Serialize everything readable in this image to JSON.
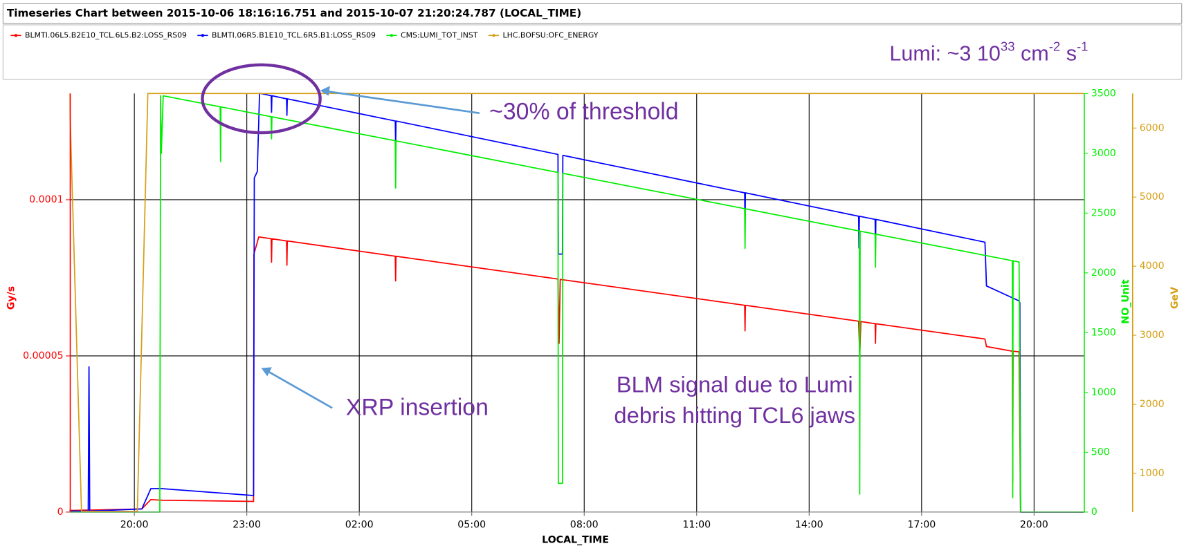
{
  "chart_data": {
    "type": "line",
    "title": "Timeseries Chart between 2015-10-06 18:16:16.751 and 2015-10-07 21:20:24.787 (LOCAL_TIME)",
    "xlabel": "LOCAL_TIME",
    "ylabel": "Gy/s",
    "y2label": "NO_Unit",
    "y3label": "GeV",
    "xlim": [
      18.27,
      45.34
    ],
    "xticks": [
      {
        "value": 20,
        "label": "20:00"
      },
      {
        "value": 23,
        "label": "23:00"
      },
      {
        "value": 26,
        "label": "02:00"
      },
      {
        "value": 29,
        "label": "05:00"
      },
      {
        "value": 32,
        "label": "08:00"
      },
      {
        "value": 35,
        "label": "11:00"
      },
      {
        "value": 38,
        "label": "14:00"
      },
      {
        "value": 41,
        "label": "17:00"
      },
      {
        "value": 44,
        "label": "20:00"
      }
    ],
    "ylim": [
      0,
      0.000134
    ],
    "yticks": [
      0,
      5e-05,
      0.0001
    ],
    "y2lim": [
      0,
      3500
    ],
    "y2ticks": [
      0,
      500,
      1000,
      1500,
      2000,
      2500,
      3000,
      3500
    ],
    "y3lim": [
      440,
      6500
    ],
    "y3ticks": [
      1000,
      2000,
      3000,
      4000,
      5000,
      6000
    ],
    "grid": true,
    "series": [
      {
        "name": "BLMTI.06L5.B2E10_TCL.6L5.B2:LOSS_RS09",
        "color": "#ff0000",
        "axis": "y",
        "x": [
          18.27,
          20.2,
          20.44,
          20.74,
          23.18,
          23.19,
          23.32,
          23.65,
          23.66,
          23.67,
          24.06,
          24.07,
          24.08,
          26.96,
          26.97,
          26.98,
          31.3,
          31.33,
          31.36,
          36.28,
          36.29,
          36.3,
          39.32,
          39.35,
          39.38,
          39.76,
          39.77,
          39.78,
          42.69,
          42.73,
          43.42,
          43.43,
          43.44,
          43.6,
          43.64,
          45.33
        ],
        "values": [
          5e-07,
          1e-06,
          4e-06,
          3.8e-06,
          3.4e-06,
          8.26e-05,
          8.81e-05,
          8.75e-05,
          8e-05,
          8.75e-05,
          8.68e-05,
          7.9e-05,
          8.68e-05,
          8.19e-05,
          7.4e-05,
          8.19e-05,
          7.46e-05,
          5.4e-05,
          7.45e-05,
          6.62e-05,
          5.8e-05,
          6.62e-05,
          6.11e-05,
          5e-05,
          6.1e-05,
          6.03e-05,
          5.4e-05,
          6.03e-05,
          5.54e-05,
          5.3e-05,
          5.15e-05,
          9.4e-06,
          5.15e-05,
          5.13e-05,
          0,
          0
        ]
      },
      {
        "name": "BLMTI.06R5.B1E10_TCL.6R5.B1:LOSS_RS09",
        "color": "#0000ff",
        "axis": "y",
        "x": [
          18.27,
          18.77,
          18.79,
          18.81,
          20.2,
          20.44,
          20.74,
          23.18,
          23.2,
          23.28,
          23.34,
          23.65,
          23.66,
          23.67,
          24.06,
          24.07,
          24.08,
          26.96,
          26.97,
          26.98,
          31.3,
          31.31,
          31.42,
          31.43,
          36.28,
          36.29,
          36.3,
          39.32,
          39.33,
          39.34,
          39.76,
          39.77,
          39.78,
          42.69,
          42.73,
          43.6,
          43.62,
          43.64,
          45.33
        ],
        "values": [
          3e-07,
          3e-07,
          4.65e-05,
          3e-07,
          1e-06,
          7.5e-06,
          7.5e-06,
          5.3e-06,
          0.000107,
          0.000109,
          0.0001341,
          0.0001333,
          0.000128,
          0.0001333,
          0.0001323,
          0.000127,
          0.0001323,
          0.0001252,
          0.000117,
          0.0001252,
          0.0001145,
          8.26e-05,
          8.26e-05,
          0.0001142,
          0.0001022,
          9.18e-05,
          0.0001022,
          9.47e-05,
          8.45e-05,
          9.47e-05,
          9.37e-05,
          8.45e-05,
          9.37e-05,
          8.64e-05,
          7.24e-05,
          6.76e-05,
          6.7e-05,
          0,
          0
        ]
      },
      {
        "name": "CMS:LUMI_TOT_INST",
        "color": "#00ee00",
        "axis": "y2",
        "x": [
          18.27,
          20.68,
          20.7,
          20.72,
          20.77,
          22.29,
          22.3,
          22.31,
          23.65,
          23.66,
          23.67,
          26.96,
          26.97,
          26.98,
          31.3,
          31.31,
          31.42,
          31.43,
          36.28,
          36.29,
          36.3,
          39.34,
          39.35,
          39.36,
          39.76,
          39.77,
          39.78,
          43.42,
          43.43,
          43.44,
          43.6,
          43.64,
          45.33
        ],
        "values": [
          0,
          0,
          3481,
          3000,
          3481,
          3389,
          2931,
          3388,
          3306,
          3121,
          3305,
          3105,
          2710,
          3104,
          2840,
          240,
          240,
          2833,
          2537,
          2205,
          2536,
          2350,
          150,
          2349,
          2325,
          2047,
          2324,
          2102,
          120,
          2101,
          2091,
          0,
          0
        ]
      },
      {
        "name": "LHC.BOFSU:OFC_ENERGY",
        "color": "#d4a017",
        "axis": "y3",
        "x": [
          18.27,
          18.59,
          20.08,
          20.36,
          45.33
        ],
        "values": [
          6500,
          450,
          450,
          6500,
          6500
        ]
      }
    ],
    "annotations": {
      "lumi": [
        {
          "text": "Lumi: ~3 10"
        },
        {
          "text": "33",
          "superscript": true
        },
        {
          "text": " cm"
        },
        {
          "text": "-2",
          "superscript": true
        },
        {
          "text": " s"
        },
        {
          "text": "-1",
          "superscript": true
        }
      ],
      "threshold": "~30% of threshold",
      "xrp": "XRP insertion",
      "blm": [
        "BLM signal due to Lumi",
        "debris hitting TCL6 jaws"
      ]
    }
  }
}
